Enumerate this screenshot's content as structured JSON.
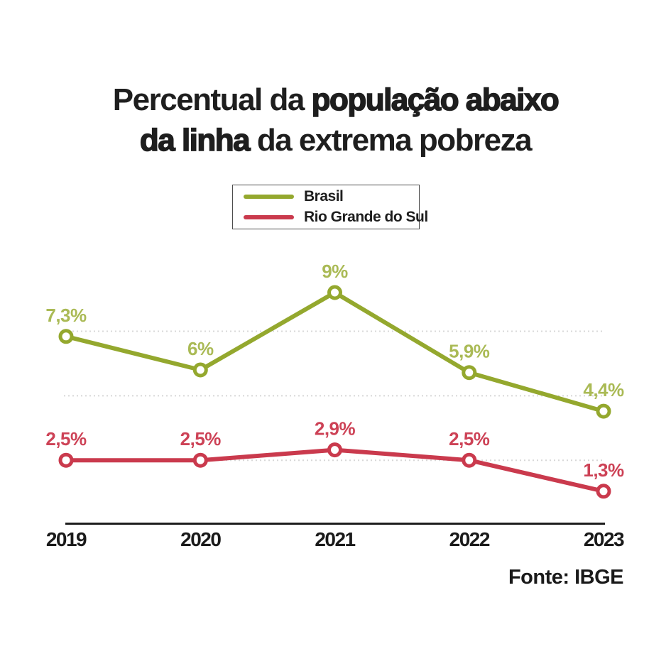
{
  "title": {
    "line1_regular": "Percentual da ",
    "line1_bold": "população abaixo",
    "line2_bold": "da linha",
    "line2_regular": " da extrema pobreza"
  },
  "legend": {
    "items": [
      {
        "label": "Brasil",
        "color": "#94a82e"
      },
      {
        "label": "Rio Grande do Sul",
        "color": "#ca3a4d"
      }
    ]
  },
  "source": "Fonte: IBGE",
  "chart_data": {
    "type": "line",
    "title": "Percentual da população abaixo da linha da extrema pobreza",
    "categories": [
      "2019",
      "2020",
      "2021",
      "2022",
      "2023"
    ],
    "series": [
      {
        "name": "Brasil",
        "color": "#94a82e",
        "label_color": "#aaba55",
        "values": [
          7.3,
          6,
          9,
          5.9,
          4.4
        ],
        "labels": [
          "7,3%",
          "6%",
          "9%",
          "5,9%",
          "4,4%"
        ]
      },
      {
        "name": "Rio Grande do Sul",
        "color": "#ca3a4d",
        "label_color": "#cd4256",
        "values": [
          2.5,
          2.5,
          2.9,
          2.5,
          1.3
        ],
        "labels": [
          "2,5%",
          "2,5%",
          "2,9%",
          "2,5%",
          "1,3%"
        ]
      }
    ],
    "gridline_values": [
      2.5,
      5,
      7.5
    ],
    "ylim": [
      0,
      10
    ],
    "xlabel": "",
    "ylabel": "",
    "grid": "horizontal-dotted",
    "legend_position": "top-center",
    "marker": "open-circle",
    "style": {
      "grid_color": "#d8d8d8",
      "axis_color": "#1e1e1e",
      "tick_label_color": "#1a1a1a",
      "background": "#ffffff"
    }
  }
}
